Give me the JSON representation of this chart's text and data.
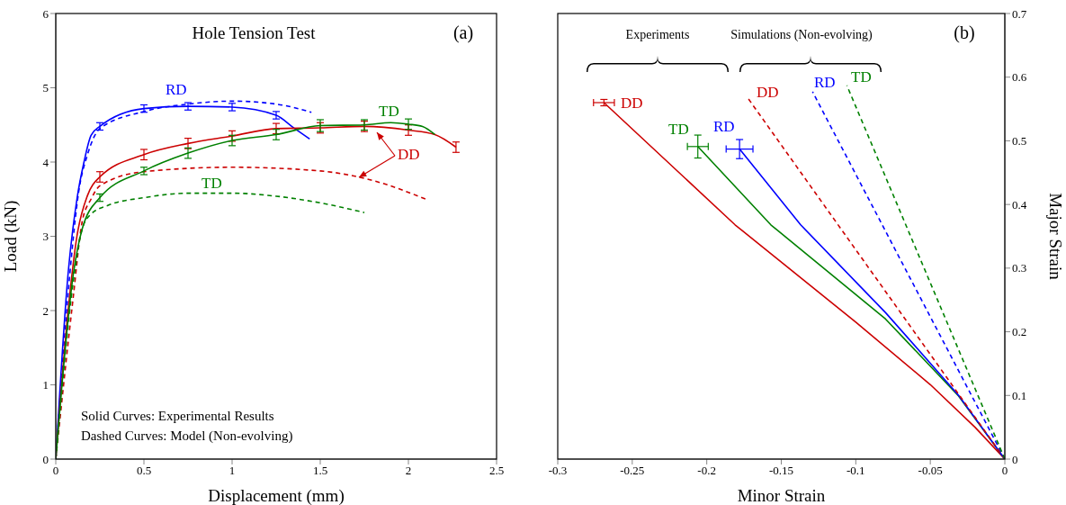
{
  "chart_data": [
    {
      "type": "line",
      "title": "Hole Tension Test",
      "xlabel": "Displacement (mm)",
      "ylabel": "Load (kN)",
      "xlim": [
        0,
        2.5
      ],
      "ylim": [
        0,
        6
      ],
      "xticks": [
        0,
        0.5,
        1,
        1.5,
        2,
        2.5
      ],
      "yticks": [
        0,
        1,
        2,
        3,
        4,
        5,
        6
      ],
      "marker": "none",
      "annotations": [
        "(a)",
        "Solid Curves: Experimental Results",
        "Dashed Curves: Model (Non-evolving)",
        "RD",
        "TD",
        "DD",
        "TD"
      ],
      "series": [
        {
          "color": "#0000ff",
          "line_style": "solid",
          "x": [
            0,
            0.07,
            0.12,
            0.16,
            0.2,
            0.25,
            0.5,
            0.75,
            1.0,
            1.25,
            1.35,
            1.44
          ],
          "values": [
            0,
            2.5,
            3.5,
            4.0,
            4.36,
            4.48,
            4.72,
            4.75,
            4.74,
            4.63,
            4.46,
            4.31
          ],
          "errors": [
            null,
            null,
            null,
            null,
            null,
            0.05,
            0.05,
            0.05,
            0.05,
            0.05,
            null,
            null
          ]
        },
        {
          "color": "#0000ff",
          "line_style": "dashed",
          "x": [
            0,
            0.08,
            0.13,
            0.18,
            0.25,
            0.5,
            0.75,
            1.0,
            1.25,
            1.45
          ],
          "values": [
            0,
            2.5,
            3.6,
            4.1,
            4.45,
            4.68,
            4.78,
            4.82,
            4.78,
            4.67
          ]
        },
        {
          "color": "#cc0000",
          "line_style": "solid",
          "x": [
            0,
            0.07,
            0.12,
            0.18,
            0.25,
            0.5,
            0.75,
            1.0,
            1.25,
            1.5,
            1.75,
            2.0,
            2.15,
            2.27
          ],
          "values": [
            0,
            2.0,
            3.0,
            3.55,
            3.8,
            4.1,
            4.25,
            4.35,
            4.45,
            4.46,
            4.48,
            4.43,
            4.37,
            4.2
          ],
          "errors": [
            null,
            null,
            null,
            null,
            0.07,
            0.07,
            0.07,
            0.07,
            0.07,
            0.07,
            0.07,
            0.07,
            null,
            0.07
          ]
        },
        {
          "color": "#cc0000",
          "line_style": "dashed",
          "x": [
            0,
            0.1,
            0.15,
            0.2,
            0.25,
            0.5,
            1.0,
            1.5,
            1.8,
            2.11
          ],
          "values": [
            0,
            2.2,
            3.2,
            3.5,
            3.68,
            3.87,
            3.93,
            3.88,
            3.75,
            3.49
          ]
        },
        {
          "color": "#008000",
          "line_style": "solid",
          "x": [
            0,
            0.1,
            0.15,
            0.25,
            0.5,
            0.75,
            1.0,
            1.25,
            1.5,
            1.75,
            1.9,
            2.0,
            2.08,
            2.15
          ],
          "values": [
            0,
            2.5,
            3.1,
            3.52,
            3.88,
            4.12,
            4.29,
            4.37,
            4.49,
            4.5,
            4.53,
            4.51,
            4.48,
            4.37
          ],
          "errors": [
            null,
            null,
            null,
            0.05,
            0.05,
            0.07,
            0.07,
            0.07,
            0.08,
            0.07,
            null,
            0.07,
            null,
            null
          ]
        },
        {
          "color": "#008000",
          "line_style": "dashed",
          "x": [
            0,
            0.1,
            0.15,
            0.2,
            0.3,
            0.5,
            0.75,
            1.0,
            1.25,
            1.5,
            1.75
          ],
          "values": [
            0,
            2.4,
            3.1,
            3.3,
            3.42,
            3.52,
            3.58,
            3.58,
            3.54,
            3.45,
            3.32
          ]
        }
      ]
    },
    {
      "type": "line",
      "xlabel": "Minor Strain",
      "y2label": "Major Strain",
      "xlim": [
        -0.3,
        0
      ],
      "y2lim": [
        0,
        0.7
      ],
      "xticks": [
        -0.3,
        -0.25,
        -0.2,
        -0.15,
        -0.1,
        -0.05,
        0
      ],
      "y2ticks": [
        0,
        0.1,
        0.2,
        0.3,
        0.4,
        0.5,
        0.6,
        0.7
      ],
      "marker": "none",
      "annotations": [
        "Experiments",
        "Simulations (Non-evolving)",
        "(b)",
        "DD",
        "TD",
        "RD",
        "DD",
        "RD",
        "TD"
      ],
      "series": [
        {
          "axis": "y2",
          "color": "#cc0000",
          "line_style": "solid",
          "x": [
            0,
            -0.02,
            -0.05,
            -0.1,
            -0.181,
            -0.269
          ],
          "values": [
            0,
            0.05,
            0.117,
            0.215,
            0.368,
            0.56
          ],
          "errors": [
            null,
            null,
            null,
            null,
            null,
            0.005
          ],
          "xerrors": [
            null,
            null,
            null,
            null,
            null,
            0.007
          ]
        },
        {
          "axis": "y2",
          "color": "#008000",
          "line_style": "solid",
          "x": [
            0,
            -0.031,
            -0.08,
            -0.157,
            -0.206
          ],
          "values": [
            0,
            0.099,
            0.22,
            0.368,
            0.491
          ],
          "errors": [
            null,
            null,
            null,
            null,
            0.018
          ],
          "xerrors": [
            null,
            null,
            null,
            null,
            0.007
          ]
        },
        {
          "axis": "y2",
          "color": "#0000ff",
          "line_style": "solid",
          "x": [
            0,
            -0.031,
            -0.08,
            -0.137,
            -0.178
          ],
          "values": [
            0,
            0.1,
            0.23,
            0.368,
            0.487
          ],
          "errors": [
            null,
            null,
            null,
            null,
            0.015
          ],
          "xerrors": [
            null,
            null,
            null,
            null,
            0.009
          ]
        },
        {
          "axis": "y2",
          "color": "#cc0000",
          "line_style": "dashed",
          "x": [
            0,
            -0.173
          ],
          "values": [
            0,
            0.569
          ]
        },
        {
          "axis": "y2",
          "color": "#0000ff",
          "line_style": "dashed",
          "x": [
            0,
            -0.129
          ],
          "values": [
            0,
            0.577
          ]
        },
        {
          "axis": "y2",
          "color": "#008000",
          "line_style": "dashed",
          "x": [
            0,
            -0.106
          ],
          "values": [
            0,
            0.587
          ]
        }
      ]
    }
  ]
}
